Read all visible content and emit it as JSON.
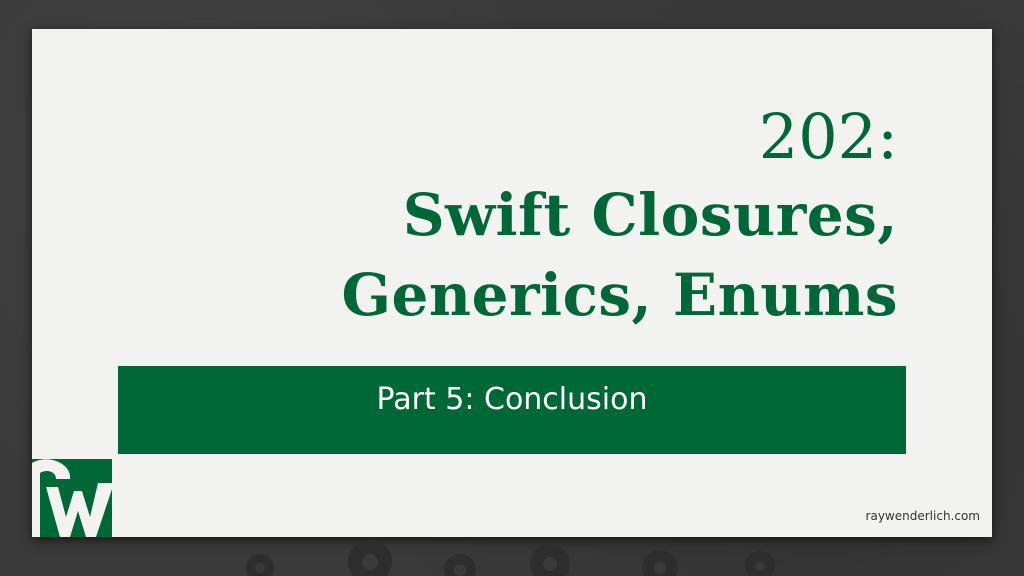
{
  "slide": {
    "course_number": "202:",
    "title_lines": [
      "Swift Closures,",
      "Generics, Enums"
    ],
    "part_label": "Part 5: Conclusion",
    "site_url": "raywenderlich.com"
  },
  "colors": {
    "brand_green": "#006837",
    "card_background": "#f2f2f0",
    "page_background": "#3a3a3a"
  },
  "icons": {
    "logo": "raywenderlich-logo-icon",
    "decor": "gear-icon"
  }
}
